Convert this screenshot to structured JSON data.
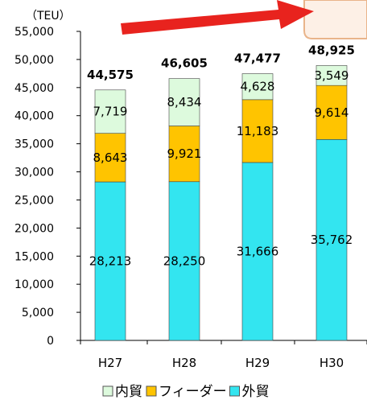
{
  "chart_data": {
    "type": "bar",
    "stacked": true,
    "unit_label": "（TEU）",
    "categories": [
      "H27",
      "H28",
      "H29",
      "H30"
    ],
    "totals": [
      44575,
      46605,
      47477,
      48925
    ],
    "total_labels": [
      "44,575",
      "46,605",
      "47,477",
      "48,925"
    ],
    "ylim": [
      0,
      55000
    ],
    "yticks": [
      0,
      5000,
      10000,
      15000,
      20000,
      25000,
      30000,
      35000,
      40000,
      45000,
      50000,
      55000
    ],
    "ytick_labels": [
      "0",
      "5,000",
      "10,000",
      "15,000",
      "20,000",
      "25,000",
      "30,000",
      "35,000",
      "40,000",
      "45,000",
      "50,000",
      "55,000"
    ],
    "grid": false,
    "legend_position": "bottom",
    "series": [
      {
        "name": "外貿",
        "color": "#33E5F0",
        "values": [
          28213,
          28250,
          31666,
          35762
        ],
        "labels": [
          "28,213",
          "28,250",
          "31,666",
          "35,762"
        ]
      },
      {
        "name": "フィーダー",
        "color": "#FFC400",
        "values": [
          8643,
          9921,
          11183,
          9614
        ],
        "labels": [
          "8,643",
          "9,921",
          "11,183",
          "9,614"
        ]
      },
      {
        "name": "内貿",
        "color": "#DDFADD",
        "values": [
          7719,
          8434,
          4628,
          3549
        ],
        "labels": [
          "7,719",
          "8,434",
          "4,628",
          "3,549"
        ]
      }
    ],
    "legend_order": [
      2,
      1,
      0
    ]
  },
  "colors": {
    "arrow": "#E8231E",
    "axis": "#000000",
    "bar_stroke": "#444444"
  }
}
